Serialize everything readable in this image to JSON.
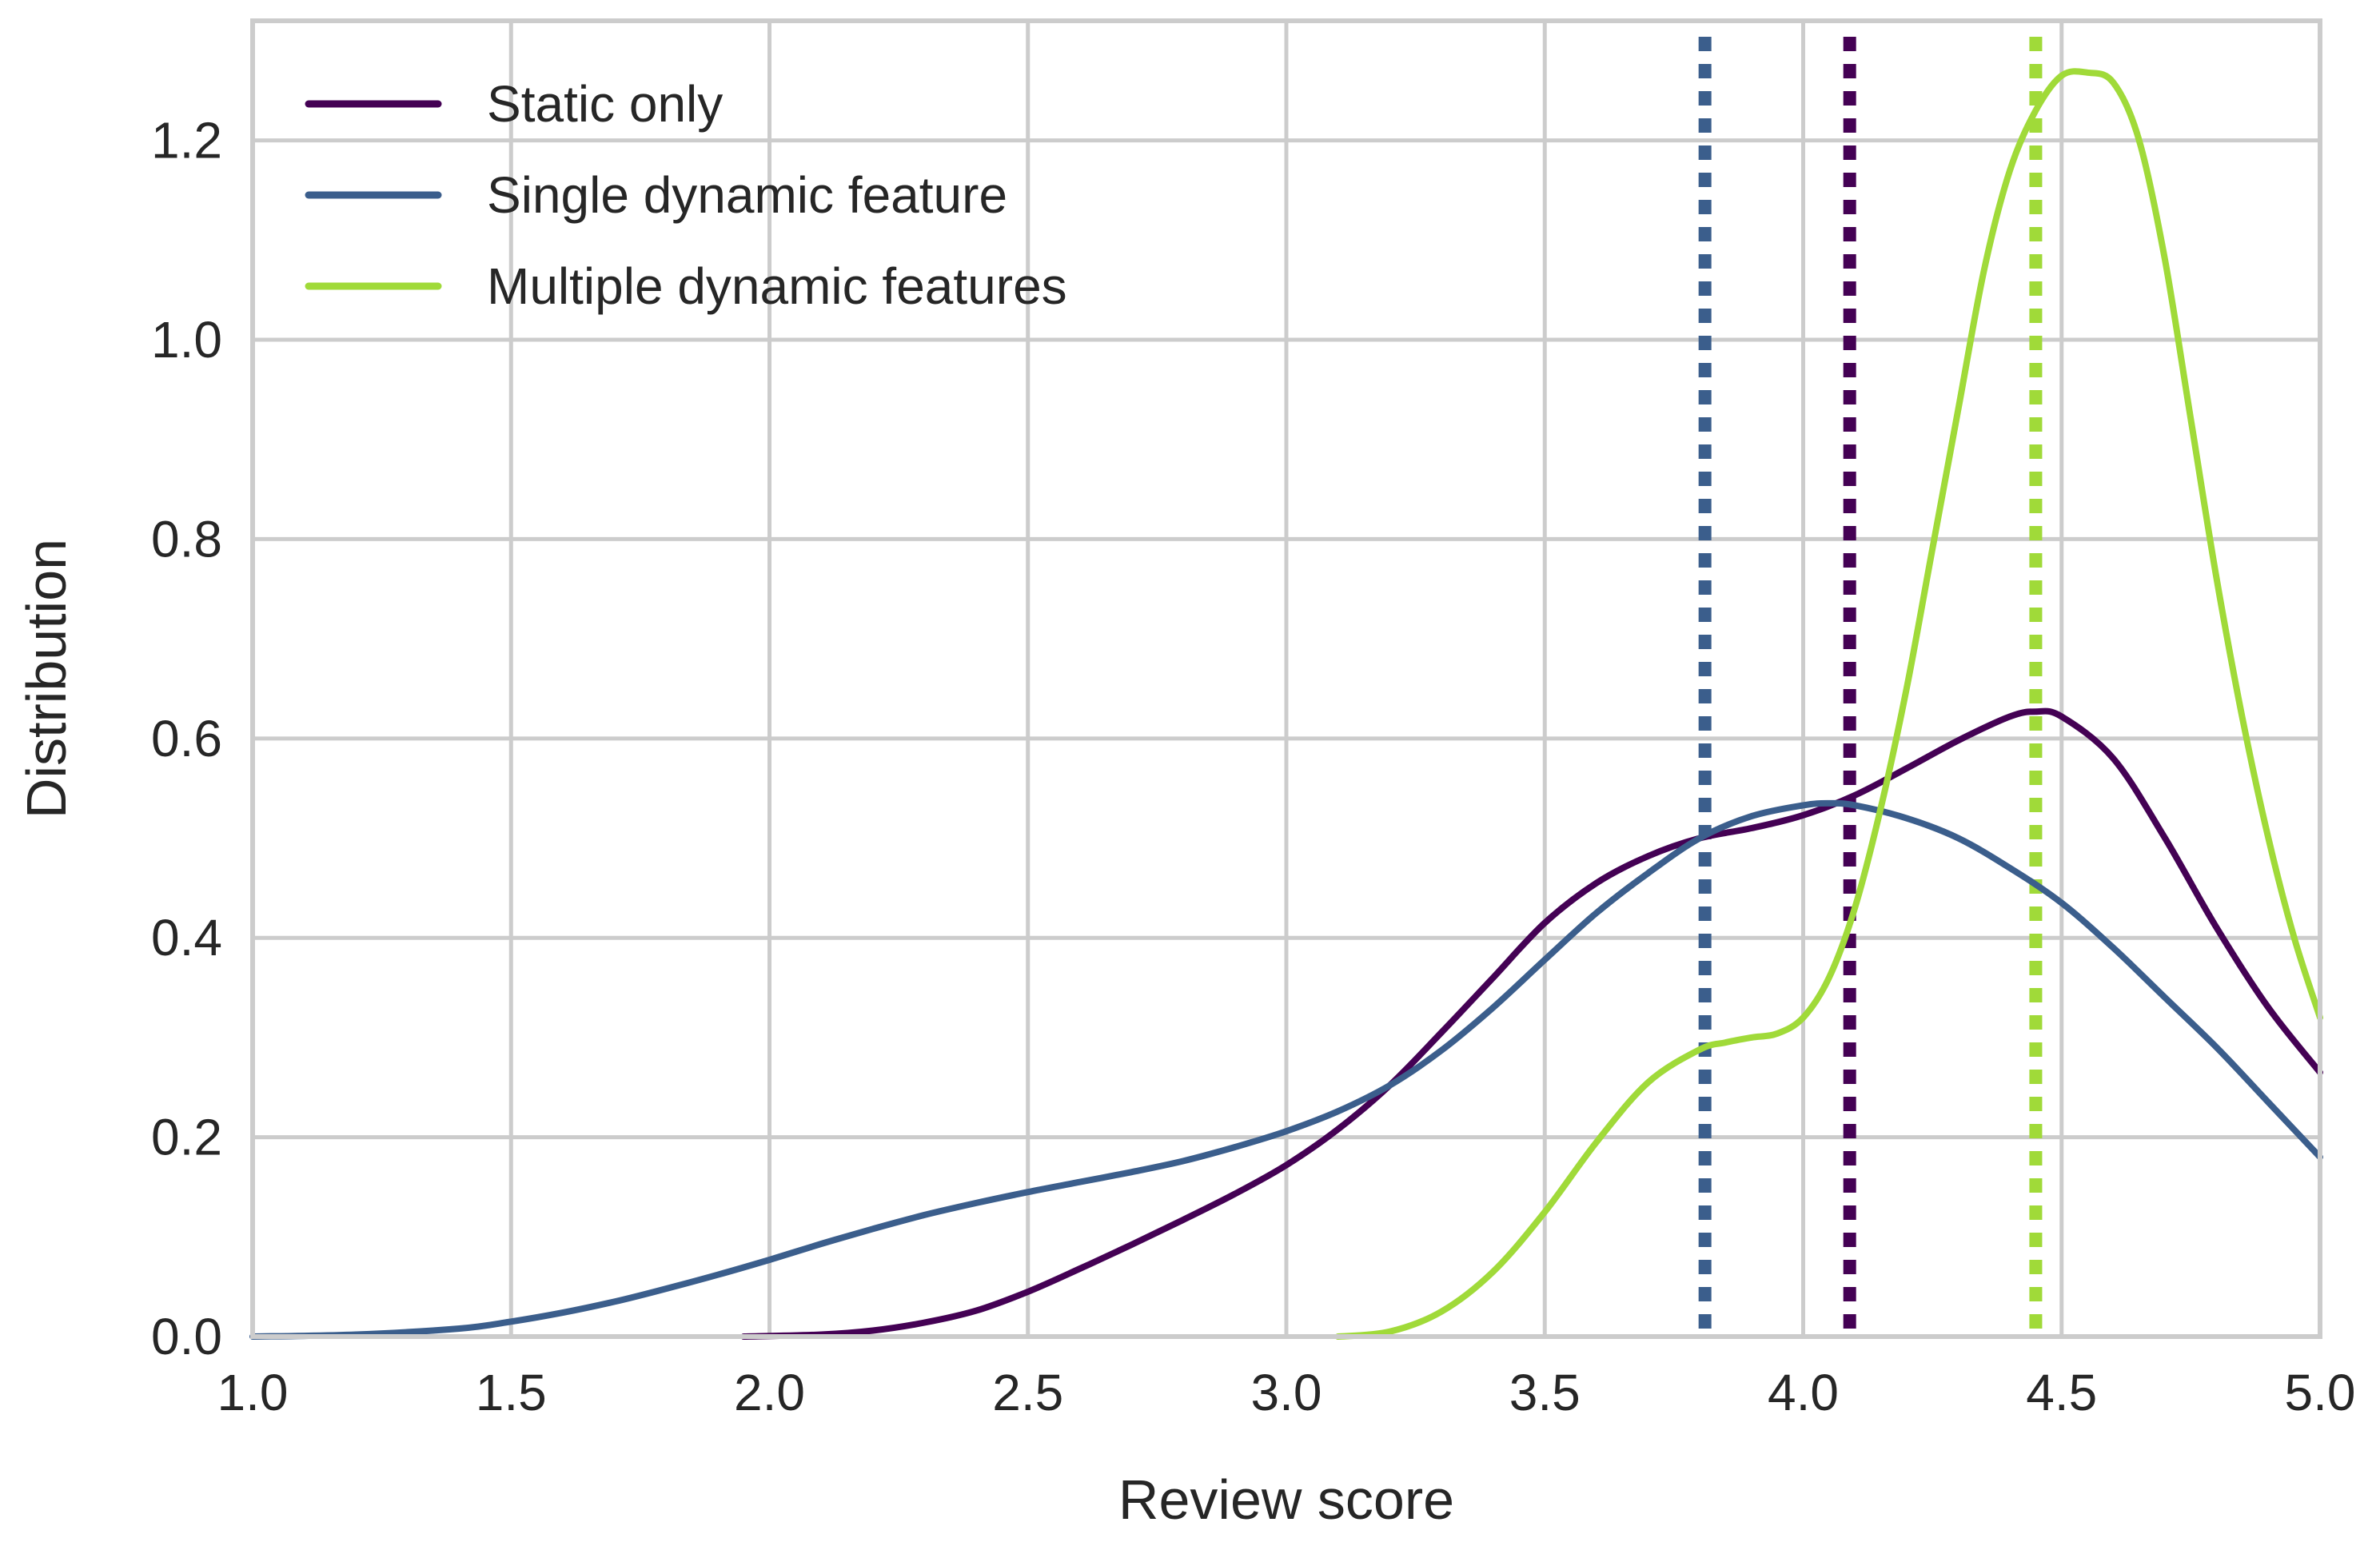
{
  "chart_data": {
    "type": "line",
    "xlabel": "Review score",
    "ylabel": "Distribution",
    "xlim": [
      1.0,
      5.0
    ],
    "ylim": [
      0.0,
      1.32
    ],
    "x_ticks": [
      "1.0",
      "1.5",
      "2.0",
      "2.5",
      "3.0",
      "3.5",
      "4.0",
      "4.5",
      "5.0"
    ],
    "y_ticks": [
      "0.0",
      "0.2",
      "0.4",
      "0.6",
      "0.8",
      "1.0",
      "1.2"
    ],
    "grid": true,
    "legend_position": "top-left",
    "series": [
      {
        "name": "Static only",
        "color": "#440154",
        "mean": 4.09,
        "x": [
          1.95,
          2.1,
          2.2,
          2.3,
          2.4,
          2.5,
          2.6,
          2.7,
          2.8,
          2.9,
          3.0,
          3.1,
          3.2,
          3.3,
          3.4,
          3.5,
          3.6,
          3.7,
          3.8,
          3.9,
          4.0,
          4.1,
          4.2,
          4.3,
          4.4,
          4.45,
          4.5,
          4.6,
          4.7,
          4.8,
          4.9,
          5.0
        ],
        "y": [
          0.0,
          0.002,
          0.006,
          0.014,
          0.026,
          0.045,
          0.068,
          0.092,
          0.117,
          0.143,
          0.172,
          0.208,
          0.252,
          0.305,
          0.36,
          0.415,
          0.455,
          0.482,
          0.5,
          0.51,
          0.523,
          0.543,
          0.57,
          0.598,
          0.622,
          0.627,
          0.622,
          0.58,
          0.5,
          0.41,
          0.33,
          0.265
        ]
      },
      {
        "name": "Single dynamic feature",
        "color": "#3b5e8c",
        "mean": 3.81,
        "x": [
          1.0,
          1.2,
          1.4,
          1.5,
          1.6,
          1.7,
          1.8,
          1.9,
          2.0,
          2.1,
          2.2,
          2.3,
          2.4,
          2.5,
          2.6,
          2.7,
          2.8,
          2.9,
          3.0,
          3.1,
          3.2,
          3.3,
          3.4,
          3.5,
          3.6,
          3.7,
          3.8,
          3.9,
          4.0,
          4.05,
          4.1,
          4.2,
          4.3,
          4.4,
          4.5,
          4.6,
          4.7,
          4.8,
          4.9,
          5.0
        ],
        "y": [
          0.0,
          0.002,
          0.008,
          0.015,
          0.024,
          0.035,
          0.048,
          0.062,
          0.077,
          0.093,
          0.108,
          0.122,
          0.134,
          0.145,
          0.155,
          0.165,
          0.176,
          0.19,
          0.206,
          0.226,
          0.252,
          0.287,
          0.33,
          0.378,
          0.425,
          0.465,
          0.5,
          0.522,
          0.533,
          0.535,
          0.533,
          0.52,
          0.5,
          0.47,
          0.435,
          0.39,
          0.34,
          0.29,
          0.235,
          0.18
        ]
      },
      {
        "name": "Multiple dynamic features",
        "color": "#a0da39",
        "mean": 4.45,
        "x": [
          3.1,
          3.2,
          3.3,
          3.4,
          3.5,
          3.6,
          3.7,
          3.8,
          3.85,
          3.9,
          3.95,
          4.0,
          4.05,
          4.1,
          4.15,
          4.2,
          4.25,
          4.3,
          4.35,
          4.4,
          4.45,
          4.5,
          4.55,
          4.6,
          4.65,
          4.7,
          4.75,
          4.8,
          4.85,
          4.9,
          4.95,
          5.0
        ],
        "y": [
          0.0,
          0.005,
          0.025,
          0.065,
          0.125,
          0.195,
          0.255,
          0.288,
          0.295,
          0.3,
          0.304,
          0.32,
          0.36,
          0.43,
          0.53,
          0.65,
          0.79,
          0.93,
          1.07,
          1.17,
          1.23,
          1.265,
          1.268,
          1.258,
          1.2,
          1.08,
          0.92,
          0.76,
          0.62,
          0.5,
          0.4,
          0.32
        ]
      }
    ]
  }
}
